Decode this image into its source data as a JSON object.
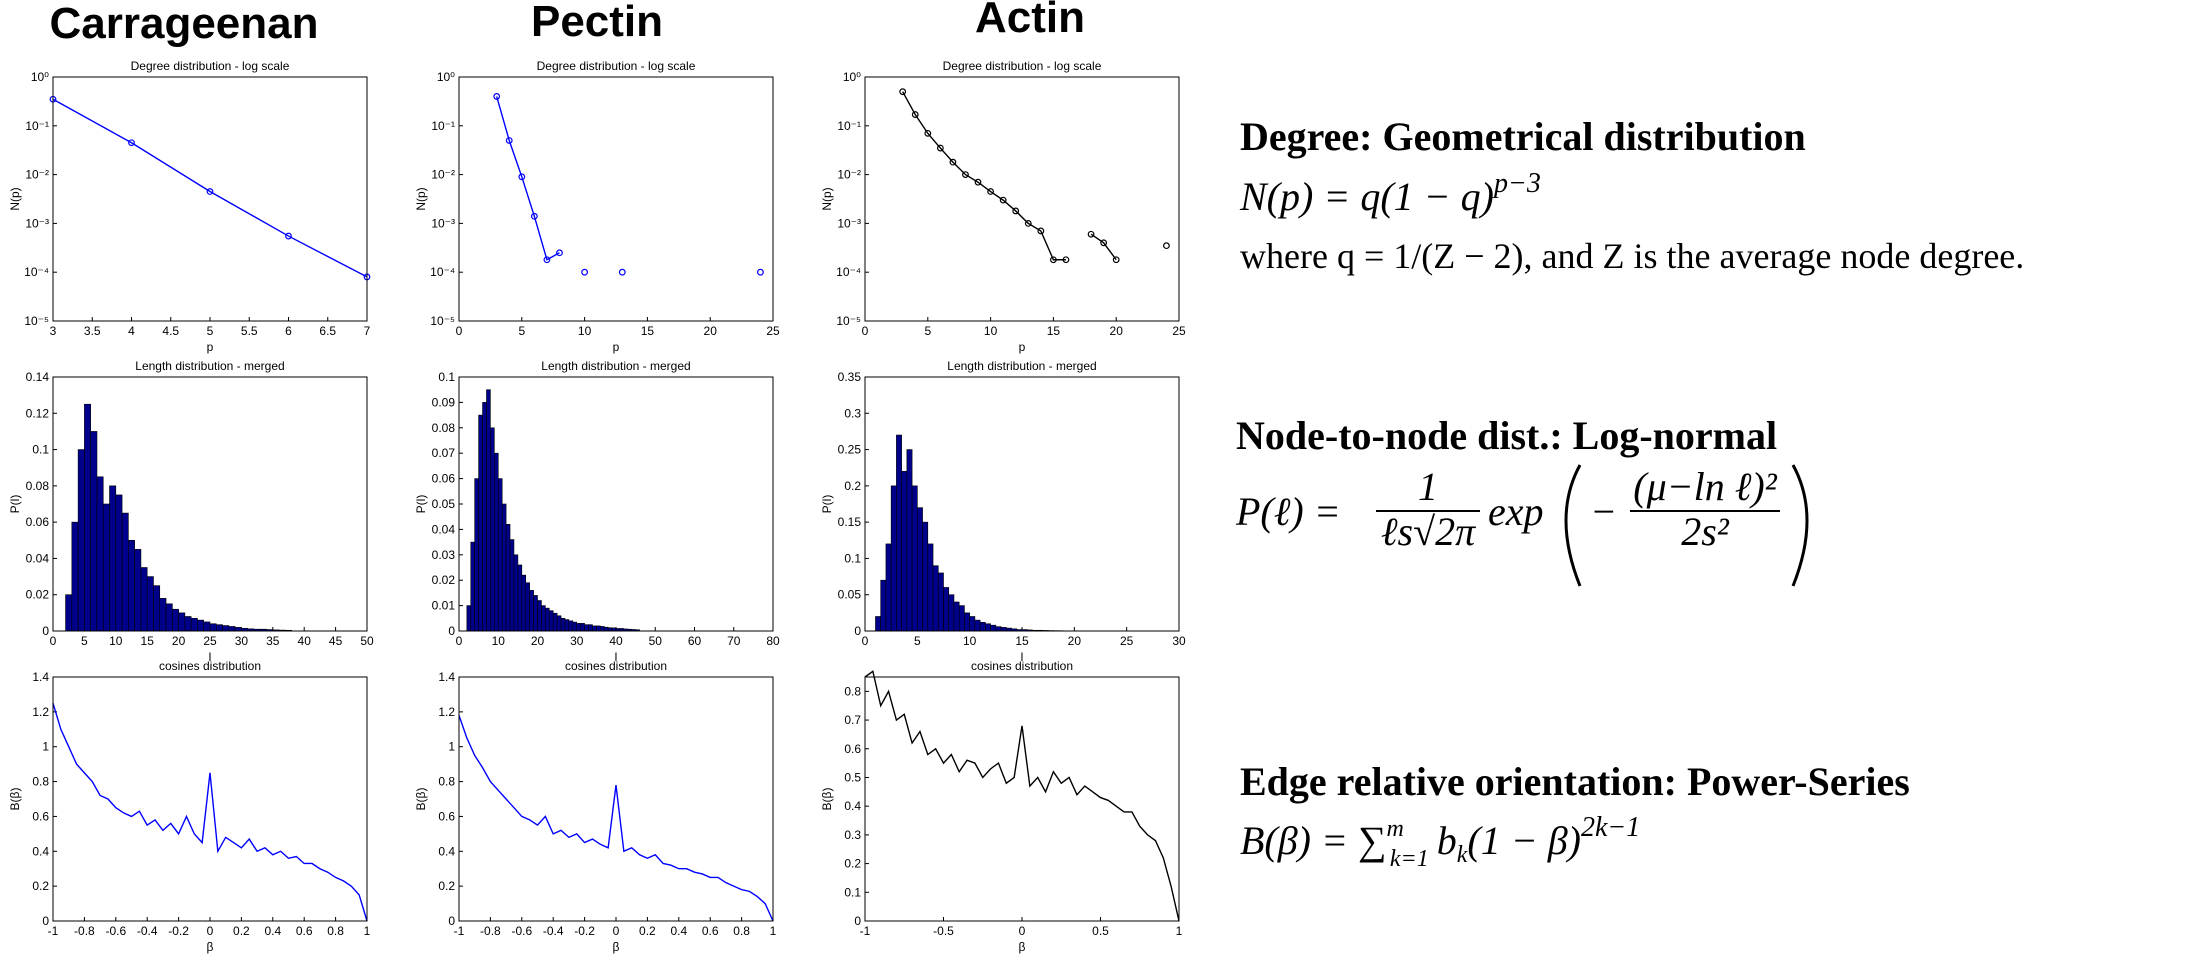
{
  "columns": [
    "Carrageenan",
    "Pectin",
    "Actin"
  ],
  "chart_data": [
    {
      "type": "line",
      "title": "Degree distribution - log scale",
      "xlabel": "p",
      "ylabel": "N(p)",
      "color": "#0000ff",
      "markers": true,
      "log_y": true,
      "x": [
        3,
        4,
        5,
        6,
        7
      ],
      "values": [
        0.35,
        0.045,
        0.0045,
        0.00055,
        8e-05
      ],
      "xlim": [
        3,
        7
      ],
      "xticks": [
        3,
        3.5,
        4,
        4.5,
        5,
        5.5,
        6,
        6.5,
        7
      ],
      "ylim": [
        1e-05,
        1
      ],
      "yticks": [
        {
          "value": 1e-05,
          "label": "10⁻⁵"
        },
        {
          "value": 0.0001,
          "label": "10⁻⁴"
        },
        {
          "value": 0.001,
          "label": "10⁻³"
        },
        {
          "value": 0.01,
          "label": "10⁻²"
        },
        {
          "value": 0.1,
          "label": "10⁻¹"
        },
        {
          "value": 1,
          "label": "10⁰"
        }
      ]
    },
    {
      "type": "line",
      "title": "Degree distribution - log scale",
      "xlabel": "p",
      "ylabel": "N(p)",
      "color": "#0000ff",
      "markers": true,
      "log_y": true,
      "x": [
        3,
        4,
        5,
        6,
        7,
        8,
        9,
        10,
        11,
        12,
        13,
        14,
        15,
        16,
        17,
        18,
        19,
        20,
        21,
        22,
        23,
        24
      ],
      "values": [
        0.4,
        0.05,
        0.009,
        0.0014,
        0.00018,
        0.00025,
        null,
        0.0001,
        null,
        null,
        0.0001,
        null,
        null,
        null,
        null,
        null,
        null,
        null,
        null,
        null,
        null,
        0.0001
      ],
      "xlim": [
        0,
        25
      ],
      "xticks": [
        0,
        5,
        10,
        15,
        20,
        25
      ],
      "ylim": [
        1e-05,
        1
      ],
      "yticks": [
        {
          "value": 1e-05,
          "label": "10⁻⁵"
        },
        {
          "value": 0.0001,
          "label": "10⁻⁴"
        },
        {
          "value": 0.001,
          "label": "10⁻³"
        },
        {
          "value": 0.01,
          "label": "10⁻²"
        },
        {
          "value": 0.1,
          "label": "10⁻¹"
        },
        {
          "value": 1,
          "label": "10⁰"
        }
      ]
    },
    {
      "type": "line",
      "title": "Degree distribution - log scale",
      "xlabel": "p",
      "ylabel": "N(p)",
      "color": "#000000",
      "markers": true,
      "log_y": true,
      "x": [
        3,
        4,
        5,
        6,
        7,
        8,
        9,
        10,
        11,
        12,
        13,
        14,
        15,
        16,
        17,
        18,
        19,
        20,
        21,
        22,
        23,
        24
      ],
      "values": [
        0.5,
        0.17,
        0.07,
        0.035,
        0.018,
        0.01,
        0.007,
        0.0045,
        0.003,
        0.0018,
        0.001,
        0.0007,
        0.00018,
        0.00018,
        null,
        0.0006,
        0.0004,
        0.00018,
        null,
        null,
        null,
        0.00035
      ],
      "xlim": [
        0,
        25
      ],
      "xticks": [
        0,
        5,
        10,
        15,
        20,
        25
      ],
      "ylim": [
        1e-05,
        1
      ],
      "yticks": [
        {
          "value": 1e-05,
          "label": "10⁻⁵"
        },
        {
          "value": 0.0001,
          "label": "10⁻⁴"
        },
        {
          "value": 0.001,
          "label": "10⁻³"
        },
        {
          "value": 0.01,
          "label": "10⁻²"
        },
        {
          "value": 0.1,
          "label": "10⁻¹"
        },
        {
          "value": 1,
          "label": "10⁰"
        }
      ]
    },
    {
      "type": "histogram",
      "title": "Length distribution - merged",
      "xlabel": "l",
      "ylabel": "P(l)",
      "color": "#00008b",
      "bins": [
        2,
        3,
        4,
        5,
        6,
        7,
        8,
        9,
        10,
        11,
        12,
        13,
        14,
        15,
        16,
        17,
        18,
        19,
        20,
        21,
        22,
        23,
        24,
        25,
        26,
        27,
        28,
        29,
        30,
        31,
        32,
        33,
        34,
        35,
        36,
        37,
        38
      ],
      "values": [
        0.02,
        0.06,
        0.1,
        0.125,
        0.11,
        0.085,
        0.07,
        0.08,
        0.075,
        0.065,
        0.05,
        0.045,
        0.035,
        0.03,
        0.025,
        0.018,
        0.015,
        0.012,
        0.01,
        0.008,
        0.007,
        0.006,
        0.005,
        0.004,
        0.0035,
        0.003,
        0.0025,
        0.002,
        0.0015,
        0.0012,
        0.001,
        0.001,
        0.0008,
        0.0006,
        0.0005,
        0.0004
      ],
      "xlim": [
        0,
        50
      ],
      "xticks": [
        0,
        5,
        10,
        15,
        20,
        25,
        30,
        35,
        40,
        45,
        50
      ],
      "ylim": [
        0,
        0.14
      ],
      "yticks": [
        0,
        0.02,
        0.04,
        0.06,
        0.08,
        0.1,
        0.12,
        0.14
      ]
    },
    {
      "type": "histogram",
      "title": "Length distribution - merged",
      "xlabel": "l",
      "ylabel": "P(l)",
      "color": "#00008b",
      "bins": [
        2,
        3,
        4,
        5,
        6,
        7,
        8,
        9,
        10,
        11,
        12,
        13,
        14,
        15,
        16,
        17,
        18,
        19,
        20,
        21,
        22,
        23,
        24,
        25,
        26,
        27,
        28,
        29,
        30,
        31,
        32,
        33,
        34,
        35,
        36,
        37,
        38,
        39,
        40,
        41,
        42,
        43,
        44,
        45,
        46
      ],
      "values": [
        0.01,
        0.035,
        0.06,
        0.085,
        0.09,
        0.095,
        0.08,
        0.07,
        0.06,
        0.05,
        0.042,
        0.036,
        0.03,
        0.026,
        0.022,
        0.019,
        0.016,
        0.014,
        0.012,
        0.01,
        0.009,
        0.008,
        0.007,
        0.006,
        0.005,
        0.0045,
        0.004,
        0.0035,
        0.003,
        0.003,
        0.0025,
        0.0025,
        0.002,
        0.002,
        0.0018,
        0.0015,
        0.0013,
        0.0012,
        0.001,
        0.001,
        0.0008,
        0.0007,
        0.0006,
        0.0005
      ],
      "xlim": [
        0,
        80
      ],
      "xticks": [
        0,
        10,
        20,
        30,
        40,
        50,
        60,
        70,
        80
      ],
      "ylim": [
        0,
        0.1
      ],
      "yticks": [
        0,
        0.01,
        0.02,
        0.03,
        0.04,
        0.05,
        0.06,
        0.07,
        0.08,
        0.09,
        0.1
      ]
    },
    {
      "type": "histogram",
      "title": "Length distribution - merged",
      "xlabel": "l",
      "ylabel": "P(l)",
      "color": "#00008b",
      "bins": [
        1,
        1.5,
        2,
        2.5,
        3,
        3.5,
        4,
        4.5,
        5,
        5.5,
        6,
        6.5,
        7,
        7.5,
        8,
        8.5,
        9,
        9.5,
        10,
        10.5,
        11,
        11.5,
        12,
        12.5,
        13,
        13.5,
        14,
        14.5,
        15,
        15.5,
        16,
        16.5,
        17,
        17.5,
        18,
        18.5,
        19
      ],
      "values": [
        0.02,
        0.07,
        0.12,
        0.2,
        0.27,
        0.22,
        0.25,
        0.2,
        0.17,
        0.15,
        0.12,
        0.09,
        0.08,
        0.06,
        0.05,
        0.04,
        0.035,
        0.025,
        0.02,
        0.015,
        0.012,
        0.01,
        0.008,
        0.006,
        0.005,
        0.004,
        0.003,
        0.002,
        0.002,
        0.0015,
        0.001,
        0.001,
        0.0008,
        0.0006,
        0.0005,
        0.0004
      ],
      "xlim": [
        0,
        30
      ],
      "xticks": [
        0,
        5,
        10,
        15,
        20,
        25,
        30
      ],
      "ylim": [
        0,
        0.35
      ],
      "yticks": [
        0,
        0.05,
        0.1,
        0.15,
        0.2,
        0.25,
        0.3,
        0.35
      ]
    },
    {
      "type": "line",
      "title": "cosines distribution",
      "xlabel": "β",
      "ylabel": "B(β)",
      "color": "#0000ff",
      "x": [
        -1,
        -0.95,
        -0.9,
        -0.85,
        -0.8,
        -0.75,
        -0.7,
        -0.65,
        -0.6,
        -0.55,
        -0.5,
        -0.45,
        -0.4,
        -0.35,
        -0.3,
        -0.25,
        -0.2,
        -0.15,
        -0.1,
        -0.05,
        0,
        0.05,
        0.1,
        0.15,
        0.2,
        0.25,
        0.3,
        0.35,
        0.4,
        0.45,
        0.5,
        0.55,
        0.6,
        0.65,
        0.7,
        0.75,
        0.8,
        0.85,
        0.9,
        0.95,
        1
      ],
      "values": [
        1.25,
        1.1,
        1.0,
        0.9,
        0.85,
        0.8,
        0.72,
        0.7,
        0.65,
        0.62,
        0.6,
        0.63,
        0.55,
        0.58,
        0.52,
        0.56,
        0.5,
        0.6,
        0.5,
        0.45,
        0.85,
        0.4,
        0.48,
        0.45,
        0.42,
        0.47,
        0.4,
        0.42,
        0.38,
        0.4,
        0.36,
        0.37,
        0.33,
        0.33,
        0.3,
        0.28,
        0.25,
        0.23,
        0.2,
        0.15,
        0
      ],
      "xlim": [
        -1,
        1
      ],
      "xticks": [
        -1,
        -0.8,
        -0.6,
        -0.4,
        -0.2,
        0,
        0.2,
        0.4,
        0.6,
        0.8,
        1
      ],
      "ylim": [
        0,
        1.4
      ],
      "yticks": [
        0,
        0.2,
        0.4,
        0.6,
        0.8,
        1,
        1.2,
        1.4
      ]
    },
    {
      "type": "line",
      "title": "cosines distribution",
      "xlabel": "β",
      "ylabel": "B(β)",
      "color": "#0000ff",
      "x": [
        -1,
        -0.95,
        -0.9,
        -0.85,
        -0.8,
        -0.75,
        -0.7,
        -0.65,
        -0.6,
        -0.55,
        -0.5,
        -0.45,
        -0.4,
        -0.35,
        -0.3,
        -0.25,
        -0.2,
        -0.15,
        -0.1,
        -0.05,
        0,
        0.05,
        0.1,
        0.15,
        0.2,
        0.25,
        0.3,
        0.35,
        0.4,
        0.45,
        0.5,
        0.55,
        0.6,
        0.65,
        0.7,
        0.75,
        0.8,
        0.85,
        0.9,
        0.95,
        1
      ],
      "values": [
        1.18,
        1.05,
        0.95,
        0.88,
        0.8,
        0.75,
        0.7,
        0.65,
        0.6,
        0.58,
        0.55,
        0.6,
        0.5,
        0.52,
        0.48,
        0.5,
        0.45,
        0.47,
        0.44,
        0.42,
        0.78,
        0.4,
        0.42,
        0.38,
        0.36,
        0.38,
        0.33,
        0.32,
        0.3,
        0.3,
        0.28,
        0.27,
        0.25,
        0.25,
        0.22,
        0.2,
        0.18,
        0.17,
        0.14,
        0.1,
        0
      ],
      "xlim": [
        -1,
        1
      ],
      "xticks": [
        -1,
        -0.8,
        -0.6,
        -0.4,
        -0.2,
        0,
        0.2,
        0.4,
        0.6,
        0.8,
        1
      ],
      "ylim": [
        0,
        1.4
      ],
      "yticks": [
        0,
        0.2,
        0.4,
        0.6,
        0.8,
        1,
        1.2,
        1.4
      ]
    },
    {
      "type": "line",
      "title": "cosines distribution",
      "xlabel": "β",
      "ylabel": "B(β)",
      "color": "#000000",
      "x": [
        -1,
        -0.95,
        -0.9,
        -0.85,
        -0.8,
        -0.75,
        -0.7,
        -0.65,
        -0.6,
        -0.55,
        -0.5,
        -0.45,
        -0.4,
        -0.35,
        -0.3,
        -0.25,
        -0.2,
        -0.15,
        -0.1,
        -0.05,
        0,
        0.05,
        0.1,
        0.15,
        0.2,
        0.25,
        0.3,
        0.35,
        0.4,
        0.45,
        0.5,
        0.55,
        0.6,
        0.65,
        0.7,
        0.75,
        0.8,
        0.85,
        0.9,
        0.95,
        1
      ],
      "values": [
        0.85,
        0.87,
        0.75,
        0.8,
        0.7,
        0.72,
        0.62,
        0.66,
        0.58,
        0.6,
        0.55,
        0.58,
        0.52,
        0.56,
        0.55,
        0.5,
        0.53,
        0.55,
        0.48,
        0.5,
        0.68,
        0.47,
        0.5,
        0.45,
        0.52,
        0.48,
        0.5,
        0.44,
        0.47,
        0.45,
        0.43,
        0.42,
        0.4,
        0.38,
        0.38,
        0.33,
        0.3,
        0.28,
        0.22,
        0.12,
        0
      ],
      "xlim": [
        -1,
        1
      ],
      "xticks": [
        -1,
        -0.5,
        0,
        0.5,
        1
      ],
      "ylim": [
        0,
        0.85
      ],
      "yticks": [
        0,
        0.1,
        0.2,
        0.3,
        0.4,
        0.5,
        0.6,
        0.7,
        0.8
      ]
    }
  ],
  "notes": [
    {
      "heading": "Degree: Geometrical distribution",
      "formula": [
        "N(p) = q(1 − q)",
        "p−3"
      ],
      "text": "where q = 1/(Z − 2), and Z is the average node degree."
    },
    {
      "heading": "Node-to-node dist.: Log-normal",
      "formula": [
        "P(ℓ) =",
        "1",
        "ℓs√2π",
        "exp",
        "−",
        "(μ−ln ℓ)²",
        "2s²"
      ]
    },
    {
      "heading": "Edge relative orientation: Power-Series",
      "formula": [
        "B(β) = ∑",
        "m",
        "k=1",
        "b",
        "k",
        "(1 − β)",
        "2k−1"
      ]
    }
  ]
}
